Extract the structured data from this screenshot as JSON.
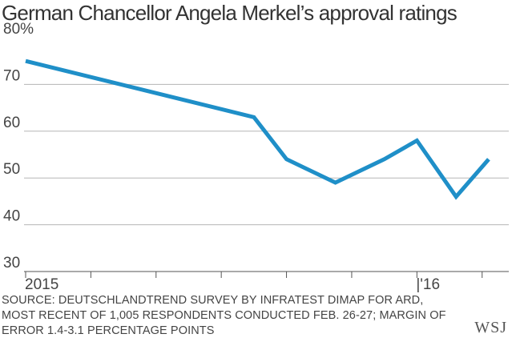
{
  "title": "German Chancellor Angela Merkel’s approval ratings",
  "chart_data": {
    "type": "line",
    "title": "German Chancellor Angela Merkel’s approval ratings",
    "xlabel": "",
    "ylabel": "",
    "ylim": [
      30,
      80
    ],
    "y_ticks": [
      "80%",
      "70",
      "60",
      "50",
      "40",
      "30"
    ],
    "x_tick_labels": [
      {
        "label": "2015",
        "at": 0
      },
      {
        "label": "|'16",
        "at": 12
      }
    ],
    "x_ticks": [
      0,
      2,
      4,
      6,
      8,
      10,
      12,
      14
    ],
    "series": [
      {
        "name": "Approval rating",
        "color": "#1f8fc8",
        "points": [
          {
            "x": 0,
            "y": 75
          },
          {
            "x": 7,
            "y": 63
          },
          {
            "x": 8,
            "y": 54
          },
          {
            "x": 9.5,
            "y": 49
          },
          {
            "x": 11,
            "y": 54
          },
          {
            "x": 12,
            "y": 58
          },
          {
            "x": 13.2,
            "y": 46
          },
          {
            "x": 14.2,
            "y": 54
          }
        ]
      }
    ]
  },
  "source": {
    "lines": [
      "SOURCE: DEUTSCHLANDTREND SURVEY BY INFRATEST DIMAP FOR ARD,",
      "MOST RECENT OF 1,005 RESPONDENTS CONDUCTED FEB. 26-27; MARGIN OF",
      "ERROR 1.4-3.1 PERCENTAGE POINTS"
    ]
  },
  "brand": "WSJ"
}
